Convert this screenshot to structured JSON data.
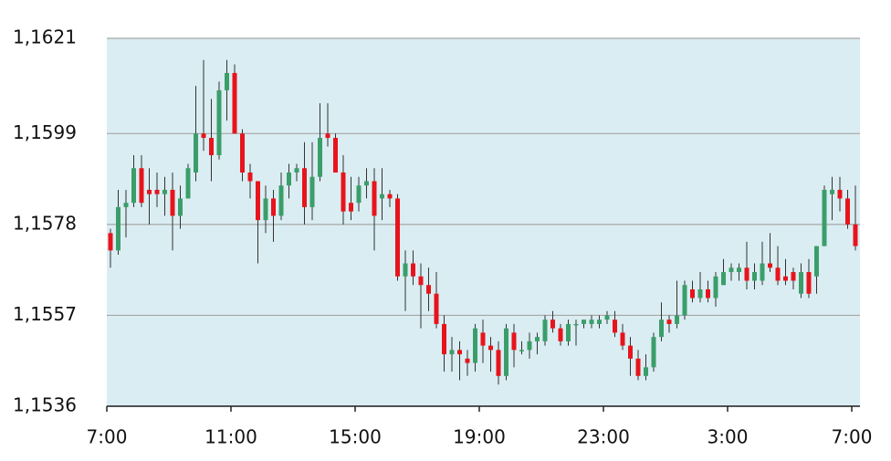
{
  "chart_data": {
    "type": "candlestick",
    "categories": [
      "7:00",
      null,
      null,
      null,
      null,
      null,
      null,
      null,
      null,
      null,
      null,
      null,
      null,
      null,
      null,
      null,
      "11:00",
      null,
      null,
      null,
      null,
      null,
      null,
      null,
      null,
      null,
      null,
      null,
      null,
      null,
      null,
      null,
      "15:00",
      null,
      null,
      null,
      null,
      null,
      null,
      null,
      null,
      null,
      null,
      null,
      null,
      null,
      null,
      null,
      "19:00",
      null,
      null,
      null,
      null,
      null,
      null,
      null,
      null,
      null,
      null,
      null,
      null,
      null,
      null,
      null,
      "23:00",
      null,
      null,
      null,
      null,
      null,
      null,
      null,
      null,
      null,
      null,
      null,
      null,
      null,
      null,
      null,
      "3:00",
      null,
      null,
      null,
      null,
      null,
      null,
      null,
      null,
      null,
      null,
      null,
      null,
      null,
      null,
      null,
      "7:00"
    ],
    "open": [
      1.1576,
      1.1572,
      1.1582,
      1.1583,
      1.1591,
      1.1586,
      1.1586,
      1.1585,
      1.1586,
      1.158,
      1.1584,
      1.159,
      1.1599,
      1.1598,
      1.1594,
      1.1609,
      1.1613,
      1.1599,
      1.159,
      1.1588,
      1.1579,
      1.1584,
      1.158,
      1.1587,
      1.159,
      1.1591,
      1.1582,
      1.1589,
      1.1599,
      1.1598,
      1.159,
      1.1583,
      1.1583,
      1.1587,
      1.1588,
      1.1584,
      1.1585,
      1.1584,
      1.1566,
      1.1569,
      1.1566,
      1.1564,
      1.1562,
      1.1555,
      1.1548,
      1.1549,
      1.1547,
      1.1546,
      1.1553,
      1.155,
      1.1549,
      1.1543,
      1.1553,
      1.1549,
      1.1549,
      1.1551,
      1.1551,
      1.1556,
      1.1554,
      1.1551,
      1.1555,
      1.1555,
      1.1555,
      1.1555,
      1.1556,
      1.1556,
      1.1553,
      1.155,
      1.1547,
      1.1543,
      1.1545,
      1.1552,
      1.1556,
      1.1555,
      1.1557,
      1.1563,
      1.1561,
      1.1563,
      1.1561,
      1.1564,
      1.1567,
      1.1567,
      1.1568,
      1.1565,
      1.1565,
      1.1569,
      1.1568,
      1.1566,
      1.1567,
      1.1562,
      1.1567,
      1.1566,
      1.1573,
      1.1585,
      1.1586,
      1.1584,
      1.1578
    ],
    "high": [
      1.1577,
      1.1586,
      1.1586,
      1.1594,
      1.1594,
      1.1591,
      1.159,
      1.1589,
      1.159,
      1.1587,
      1.1592,
      1.161,
      1.1616,
      1.1607,
      1.1611,
      1.1616,
      1.1615,
      1.16,
      1.1592,
      1.1588,
      1.1587,
      1.1586,
      1.159,
      1.1592,
      1.1592,
      1.1597,
      1.1597,
      1.1606,
      1.1606,
      1.1599,
      1.1594,
      1.1589,
      1.1589,
      1.1591,
      1.1591,
      1.1591,
      1.1586,
      1.1585,
      1.1572,
      1.1572,
      1.1569,
      1.1568,
      1.1567,
      1.1557,
      1.1552,
      1.1551,
      1.1549,
      1.1555,
      1.1556,
      1.1552,
      1.1551,
      1.1555,
      1.1555,
      1.1551,
      1.1553,
      1.1553,
      1.1557,
      1.1558,
      1.1555,
      1.1556,
      1.1556,
      1.1556,
      1.1557,
      1.1557,
      1.1558,
      1.1558,
      1.1555,
      1.1552,
      1.1549,
      1.1548,
      1.1553,
      1.156,
      1.1557,
      1.1565,
      1.1565,
      1.1565,
      1.1567,
      1.1565,
      1.1567,
      1.157,
      1.1569,
      1.1569,
      1.1574,
      1.1569,
      1.1574,
      1.1576,
      1.1573,
      1.157,
      1.1568,
      1.1569,
      1.157,
      1.1573,
      1.1587,
      1.1589,
      1.1589,
      1.1586,
      1.1587
    ],
    "low": [
      1.1568,
      1.1571,
      1.1575,
      1.1582,
      1.1582,
      1.1578,
      1.1582,
      1.158,
      1.1572,
      1.1577,
      1.1584,
      1.1588,
      1.1595,
      1.1588,
      1.1593,
      1.1602,
      1.1599,
      1.1588,
      1.1584,
      1.1569,
      1.1576,
      1.1574,
      1.1579,
      1.1584,
      1.1588,
      1.1578,
      1.1579,
      1.1588,
      1.1596,
      1.159,
      1.1578,
      1.1579,
      1.1581,
      1.1584,
      1.1572,
      1.1579,
      1.1582,
      1.1565,
      1.1558,
      1.1564,
      1.1554,
      1.1558,
      1.1554,
      1.1544,
      1.1544,
      1.1542,
      1.1543,
      1.1544,
      1.1546,
      1.1544,
      1.1541,
      1.1542,
      1.1545,
      1.1548,
      1.1547,
      1.1548,
      1.155,
      1.1553,
      1.155,
      1.155,
      1.155,
      1.1554,
      1.1554,
      1.1554,
      1.1555,
      1.1552,
      1.1549,
      1.1543,
      1.1542,
      1.1542,
      1.1544,
      1.1551,
      1.1553,
      1.1554,
      1.1556,
      1.156,
      1.156,
      1.156,
      1.1559,
      1.1564,
      1.1565,
      1.1565,
      1.1563,
      1.1563,
      1.1564,
      1.1567,
      1.1564,
      1.1564,
      1.1563,
      1.1561,
      1.1561,
      1.1562,
      1.1573,
      1.1579,
      1.1581,
      1.1577,
      1.1572
    ],
    "close": [
      1.1572,
      1.1582,
      1.1583,
      1.1591,
      1.1583,
      1.1585,
      1.1585,
      1.1586,
      1.158,
      1.1584,
      1.1591,
      1.1599,
      1.1598,
      1.1594,
      1.1609,
      1.1613,
      1.1599,
      1.159,
      1.1588,
      1.1579,
      1.1584,
      1.158,
      1.1587,
      1.159,
      1.1591,
      1.1582,
      1.1589,
      1.1598,
      1.1598,
      1.159,
      1.1581,
      1.1581,
      1.1587,
      1.1588,
      1.158,
      1.1585,
      1.1584,
      1.1566,
      1.1569,
      1.1566,
      1.1564,
      1.1562,
      1.1555,
      1.1548,
      1.1549,
      1.1548,
      1.1546,
      1.1554,
      1.155,
      1.1549,
      1.1543,
      1.1554,
      1.1549,
      1.1549,
      1.1551,
      1.1552,
      1.1556,
      1.1554,
      1.1551,
      1.1555,
      1.1555,
      1.1556,
      1.1556,
      1.1556,
      1.1557,
      1.1553,
      1.155,
      1.1547,
      1.1543,
      1.1545,
      1.1552,
      1.1556,
      1.1555,
      1.1557,
      1.1564,
      1.1561,
      1.1563,
      1.1561,
      1.1566,
      1.1567,
      1.1568,
      1.1568,
      1.1565,
      1.1567,
      1.1569,
      1.1568,
      1.1565,
      1.1565,
      1.1565,
      1.1567,
      1.1562,
      1.1573,
      1.1586,
      1.1586,
      1.1584,
      1.1578,
      1.1573
    ],
    "up_color": "#3b9e6a",
    "down_color": "#e8141c",
    "ylim": [
      1.1536,
      1.1621
    ],
    "yticks": [
      {
        "value": 1.1536,
        "label": "1,1536"
      },
      {
        "value": 1.1557,
        "label": "1,1557"
      },
      {
        "value": 1.1578,
        "label": "1,1578"
      },
      {
        "value": 1.1599,
        "label": "1,1599"
      },
      {
        "value": 1.1621,
        "label": "1,1621"
      }
    ],
    "grid": true
  }
}
